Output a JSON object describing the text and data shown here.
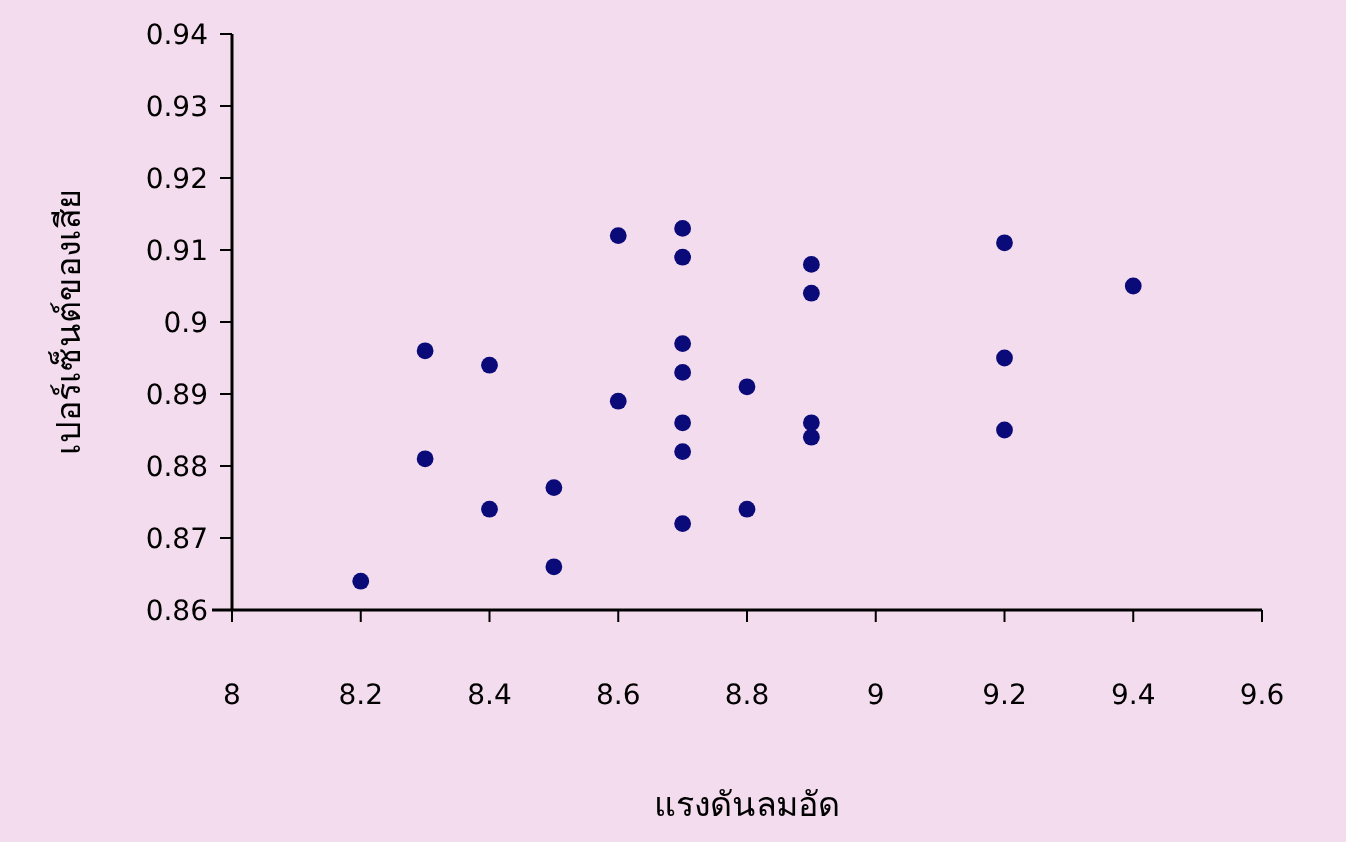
{
  "chart_data": {
    "type": "scatter",
    "xlabel": "แรงดันลมอัด",
    "ylabel": "เปอร์เซ็นต์ของเสีย",
    "x": [
      8.2,
      8.3,
      8.3,
      8.4,
      8.4,
      8.5,
      8.5,
      8.6,
      8.6,
      8.7,
      8.7,
      8.7,
      8.7,
      8.7,
      8.7,
      8.7,
      8.8,
      8.8,
      8.9,
      8.9,
      8.9,
      8.9,
      9.2,
      9.2,
      9.2,
      9.4
    ],
    "values": [
      0.864,
      0.896,
      0.881,
      0.894,
      0.874,
      0.877,
      0.866,
      0.912,
      0.889,
      0.913,
      0.909,
      0.897,
      0.893,
      0.886,
      0.882,
      0.872,
      0.891,
      0.874,
      0.908,
      0.904,
      0.886,
      0.884,
      0.911,
      0.895,
      0.885,
      0.905
    ],
    "color": "#0a0a78",
    "marker": "circle",
    "xlim": [
      8,
      9.6
    ],
    "xticks": [
      8,
      8.2,
      8.4,
      8.6,
      8.8,
      9,
      9.2,
      9.4,
      9.6
    ],
    "ylim": [
      0.86,
      0.94
    ],
    "yticks": [
      0.86,
      0.87,
      0.88,
      0.89,
      0.9,
      0.91,
      0.92,
      0.93,
      0.94
    ]
  }
}
